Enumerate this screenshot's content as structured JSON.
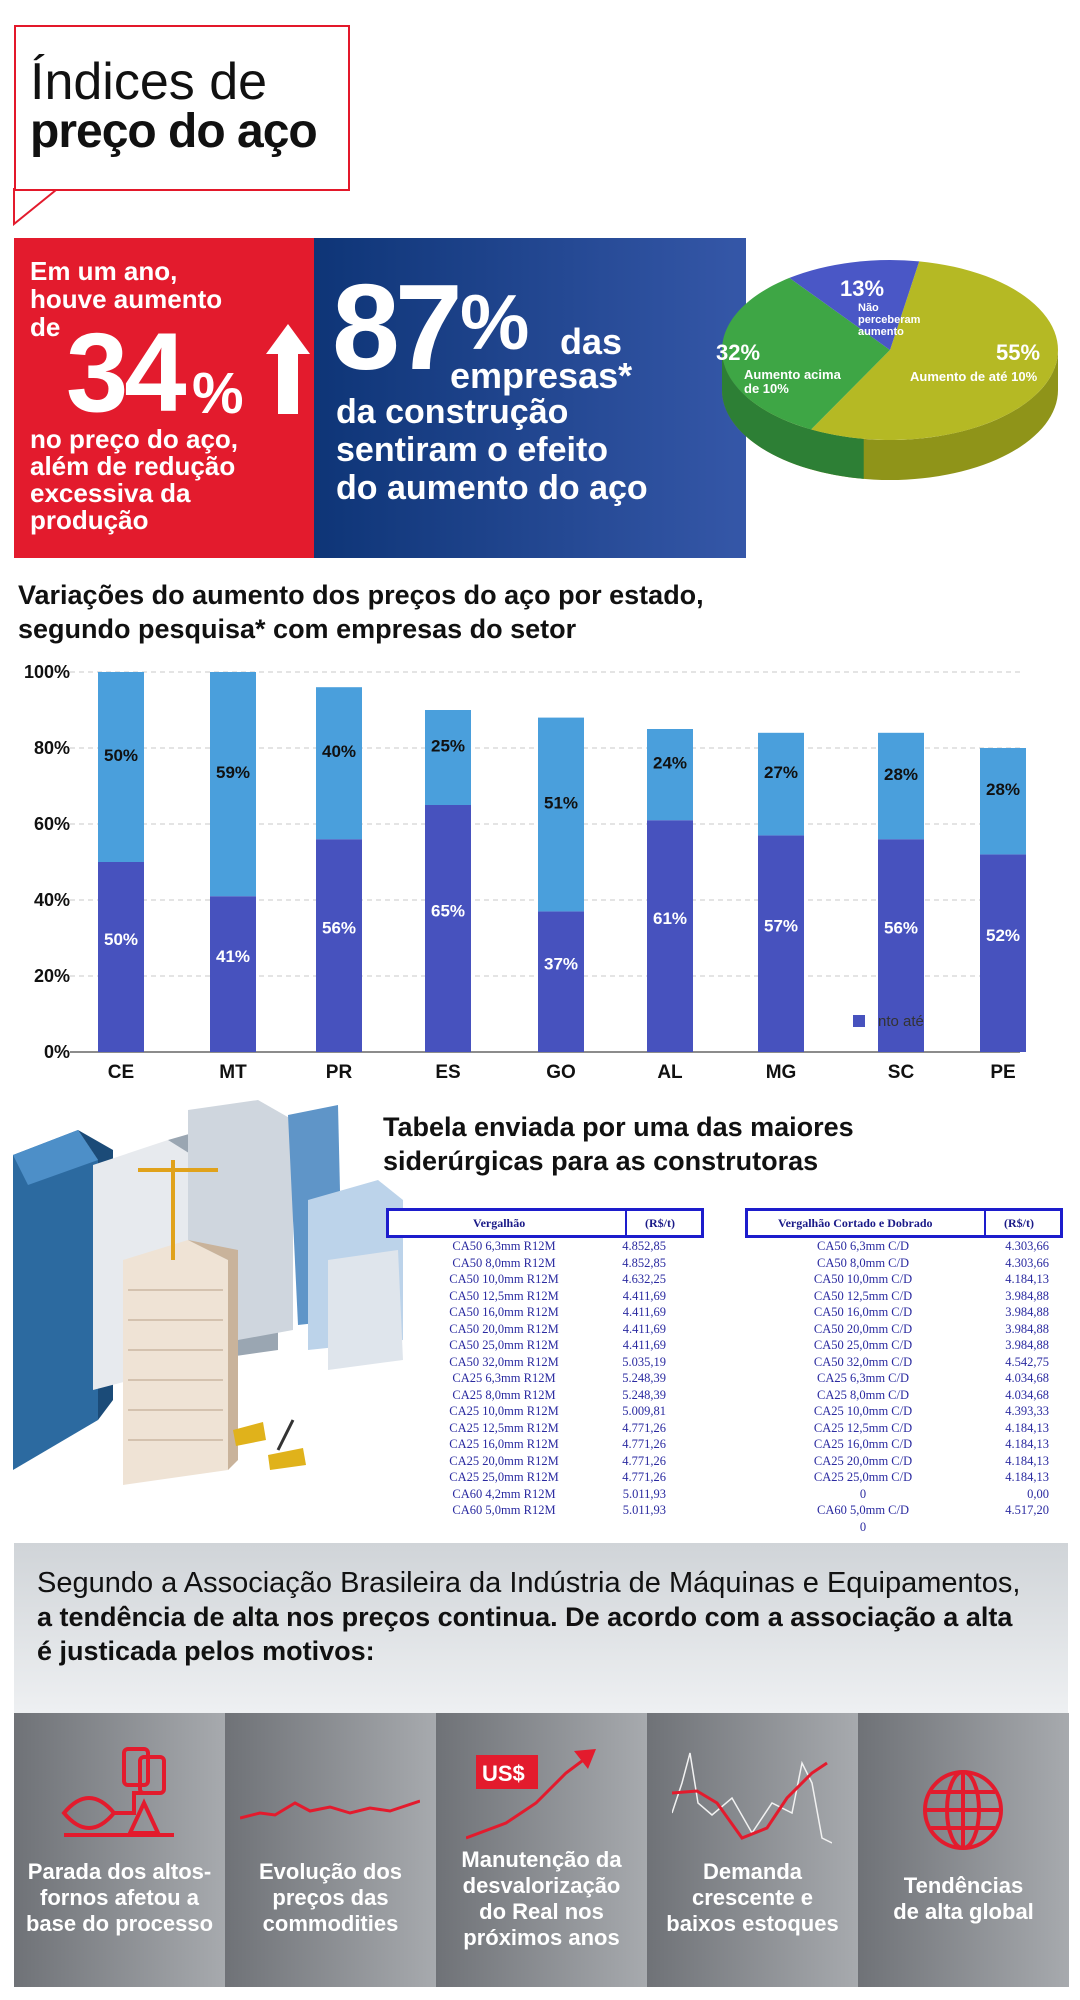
{
  "title": {
    "line1": "Índices de",
    "line2": "preço do aço"
  },
  "red_panel": {
    "lines_top": [
      "Em um ano,",
      "houve aumento",
      "de"
    ],
    "number": "34",
    "percent": "%",
    "lines_bottom": [
      "no preço do aço,",
      "além de redução",
      "excessiva da",
      "produção"
    ]
  },
  "blue_panel": {
    "number": "87",
    "percent": "%",
    "das": "das",
    "empresas": "empresas*",
    "lines": [
      "da construção",
      "sentiram o efeito",
      "do aumento do aço"
    ]
  },
  "pie": {
    "slices": [
      {
        "pct": "55%",
        "label": "Aumento de até 10%",
        "value": 55,
        "color": "#b5b924"
      },
      {
        "pct": "32%",
        "label_lines": [
          "Aumento acima",
          "de 10%"
        ],
        "value": 32,
        "color": "#3ea645"
      },
      {
        "pct": "13%",
        "label_lines": [
          "Não",
          "perceberam",
          "aumento"
        ],
        "value": 13,
        "color": "#4a57c6"
      }
    ]
  },
  "chart_heading": {
    "line1": "Variações do aumento dos preços do aço por estado,",
    "line2": "segundo pesquisa* com empresas do setor"
  },
  "chart_data": {
    "type": "bar",
    "stacked": true,
    "categories": [
      "CE",
      "MT",
      "PR",
      "ES",
      "GO",
      "AL",
      "MG",
      "SC",
      "PE"
    ],
    "series": [
      {
        "values": [
          50,
          41,
          56,
          65,
          37,
          61,
          57,
          56,
          52
        ],
        "color": "#4752be"
      },
      {
        "values": [
          50,
          59,
          40,
          25,
          51,
          24,
          27,
          28,
          28
        ],
        "color": "#4a9fdc"
      }
    ],
    "bar_labels_bottom": [
      "50%",
      "41%",
      "56%",
      "65%",
      "37%",
      "61%",
      "57%",
      "56%",
      "52%"
    ],
    "bar_labels_top": [
      "50%",
      "59%",
      "40%",
      "25%",
      "51%",
      "24%",
      "27%",
      "28%",
      "28%"
    ],
    "y_ticks": [
      "0%",
      "20%",
      "40%",
      "60%",
      "80%",
      "100%"
    ],
    "ylim": [
      0,
      100
    ],
    "grid": true,
    "legend_fragment": "nto até",
    "legend_placement": "bottom-right"
  },
  "table_heading": {
    "line1": "Tabela enviada por uma das maiores",
    "line2": "siderúrgicas para as construtoras"
  },
  "table_left": {
    "headers": [
      "Vergalhão",
      "(R$/t)"
    ],
    "rows": [
      [
        "CA50 6,3mm R12M",
        "4.852,85"
      ],
      [
        "CA50 8,0mm R12M",
        "4.852,85"
      ],
      [
        "CA50 10,0mm R12M",
        "4.632,25"
      ],
      [
        "CA50 12,5mm R12M",
        "4.411,69"
      ],
      [
        "CA50 16,0mm R12M",
        "4.411,69"
      ],
      [
        "CA50 20,0mm R12M",
        "4.411,69"
      ],
      [
        "CA50 25,0mm R12M",
        "4.411,69"
      ],
      [
        "CA50 32,0mm R12M",
        "5.035,19"
      ],
      [
        "CA25 6,3mm R12M",
        "5.248,39"
      ],
      [
        "CA25 8,0mm R12M",
        "5.248,39"
      ],
      [
        "CA25 10,0mm R12M",
        "5.009,81"
      ],
      [
        "CA25 12,5mm R12M",
        "4.771,26"
      ],
      [
        "CA25 16,0mm R12M",
        "4.771,26"
      ],
      [
        "CA25 20,0mm R12M",
        "4.771,26"
      ],
      [
        "CA25 25,0mm R12M",
        "4.771,26"
      ],
      [
        "CA60 4,2mm R12M",
        "5.011,93"
      ],
      [
        "CA60 5,0mm  R12M",
        "5.011,93"
      ]
    ]
  },
  "table_right": {
    "headers": [
      "Vergalhão Cortado e Dobrado",
      "(R$/t)"
    ],
    "rows": [
      [
        "CA50 6,3mm  C/D",
        "4.303,66"
      ],
      [
        "CA50 8,0mm  C/D",
        "4.303,66"
      ],
      [
        "CA50 10,0mm  C/D",
        "4.184,13"
      ],
      [
        "CA50 12,5mm  C/D",
        "3.984,88"
      ],
      [
        "CA50 16,0mm  C/D",
        "3.984,88"
      ],
      [
        "CA50 20,0mm  C/D",
        "3.984,88"
      ],
      [
        "CA50 25,0mm  C/D",
        "3.984,88"
      ],
      [
        "CA50 32,0mm  C/D",
        "4.542,75"
      ],
      [
        "CA25 6,3mm  C/D",
        "4.034,68"
      ],
      [
        "CA25 8,0mm  C/D",
        "4.034,68"
      ],
      [
        "CA25 10,0mm  C/D",
        "4.393,33"
      ],
      [
        "CA25 12,5mm  C/D",
        "4.184,13"
      ],
      [
        "CA25 16,0mm  C/D",
        "4.184,13"
      ],
      [
        "CA25 20,0mm  C/D",
        "4.184,13"
      ],
      [
        "CA25 25,0mm  C/D",
        "4.184,13"
      ],
      [
        "0",
        "0,00"
      ],
      [
        "CA60 5,0mm  C/D",
        "4.517,20"
      ],
      [
        "0",
        ""
      ]
    ]
  },
  "association": {
    "line1": "Segundo a Associação Brasileira da Indústria de Máquinas e Equipamentos,",
    "line2": "a tendência de alta nos preços continua. De acordo com a associação a alta",
    "line3": "é justicada pelos motivos:"
  },
  "reasons": [
    {
      "icon": "blast-furnace-icon",
      "lines": [
        "Parada dos altos-",
        "fornos afetou a",
        "base do processo"
      ]
    },
    {
      "icon": "line-trend-icon",
      "lines": [
        "Evolução dos",
        "preços das",
        "commodities"
      ]
    },
    {
      "icon": "dollar-trend-icon",
      "badge": "US$",
      "lines": [
        "Manutenção da",
        "desvalorização",
        "do Real nos",
        "próximos anos"
      ]
    },
    {
      "icon": "demand-chart-icon",
      "lines": [
        "Demanda",
        "crescente e",
        "baixos estoques"
      ]
    },
    {
      "icon": "globe-icon",
      "lines": [
        "Tendências",
        "de alta global"
      ]
    }
  ],
  "colors": {
    "red": "#e31b2d",
    "navy": "#0e3577",
    "bar_dark": "#4752be",
    "bar_light": "#4a9fdc",
    "table_blue": "#1d1dcc"
  }
}
